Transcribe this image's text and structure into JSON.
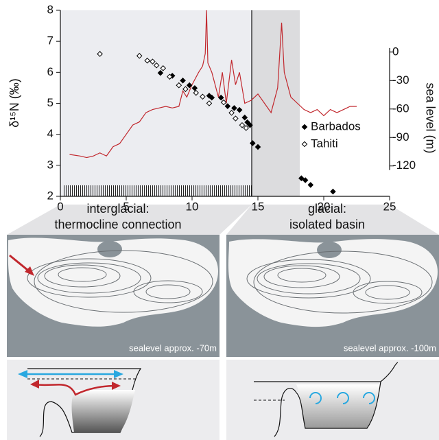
{
  "chart_data": {
    "type": "line",
    "ylabel": "δ¹⁵N (‰)",
    "y2label": "sea level (m)",
    "xlim": [
      0,
      25
    ],
    "xticks": [
      0,
      5,
      10,
      15,
      20,
      25
    ],
    "ylim": [
      2,
      8
    ],
    "yticks": [
      2,
      3,
      4,
      5,
      6,
      7,
      8
    ],
    "y2lim": [
      -152,
      44
    ],
    "y2ticks": [
      0,
      -30,
      -60,
      -90,
      -120
    ],
    "legend": "right",
    "series": [
      {
        "type": "line",
        "color": "#c1272d",
        "x": [
          0.7,
          1.5,
          2,
          2.5,
          3,
          3.5,
          4,
          4.5,
          5,
          5.5,
          6,
          6.5,
          7,
          7.5,
          8,
          8.5,
          9,
          9.3,
          9.6,
          10,
          10.5,
          10.8,
          11.0,
          11.1,
          11.2,
          11.5,
          12,
          12.3,
          12.6,
          13,
          13.3,
          13.6,
          14,
          14.5,
          15,
          15.5,
          16,
          16.5,
          16.8,
          17,
          17.5,
          18,
          18.5,
          19,
          19.5,
          20,
          20.5,
          21,
          21.5,
          22,
          22.5
        ],
        "values": [
          3.35,
          3.3,
          3.25,
          3.3,
          3.4,
          3.3,
          3.6,
          3.7,
          4.0,
          4.3,
          4.4,
          4.7,
          4.8,
          4.85,
          4.9,
          4.85,
          4.9,
          5.4,
          5.2,
          5.6,
          6.0,
          6.2,
          6.6,
          8.0,
          6.3,
          6.0,
          5.2,
          6.0,
          5.0,
          6.4,
          5.6,
          6.0,
          5.0,
          5.1,
          5.3,
          5.0,
          4.7,
          5.5,
          7.6,
          6.0,
          5.2,
          5.0,
          4.8,
          4.7,
          4.8,
          4.6,
          4.8,
          4.7,
          4.8,
          4.9,
          4.9
        ]
      },
      {
        "type": "scatter",
        "name": "Barbados",
        "axis": "y2",
        "color": "#000000",
        "marker_fill": "#000000",
        "x": [
          7.6,
          8.5,
          9.3,
          9.8,
          10.2,
          11.3,
          11.5,
          12.2,
          12.7,
          13.2,
          13.6,
          14,
          14.2,
          14.4,
          14.6,
          15,
          18.3,
          18.6,
          19,
          20.7
        ],
        "values": [
          -22,
          -25,
          -30,
          -35,
          -38,
          -46,
          -48,
          -48,
          -57,
          -59,
          -61,
          -69,
          -74,
          -77,
          -96,
          -100,
          -133,
          -135,
          -140,
          -147
        ]
      },
      {
        "type": "scatter",
        "name": "Tahiti",
        "axis": "y2",
        "color": "#000000",
        "marker_fill": "#ffffff",
        "x": [
          3.0,
          6,
          6.6,
          7.0,
          7.3,
          7.8,
          8.3,
          9.0,
          9.5,
          10.3,
          10.8,
          11.3,
          12.4,
          13.0,
          13.3,
          13.8,
          14.1
        ],
        "values": [
          -2,
          -4,
          -9,
          -10,
          -14,
          -17,
          -26,
          -35,
          -39,
          -43,
          -47,
          -54,
          -53,
          -64,
          -70,
          -77,
          -80
        ]
      }
    ]
  },
  "panels": {
    "left": {
      "heading": [
        "interglacial:",
        "thermocline connection"
      ],
      "caption": "sealevel approx. -70m"
    },
    "right": {
      "heading": [
        "glacial:",
        "isolated basin"
      ],
      "caption": "sealevel approx. -100m"
    }
  }
}
